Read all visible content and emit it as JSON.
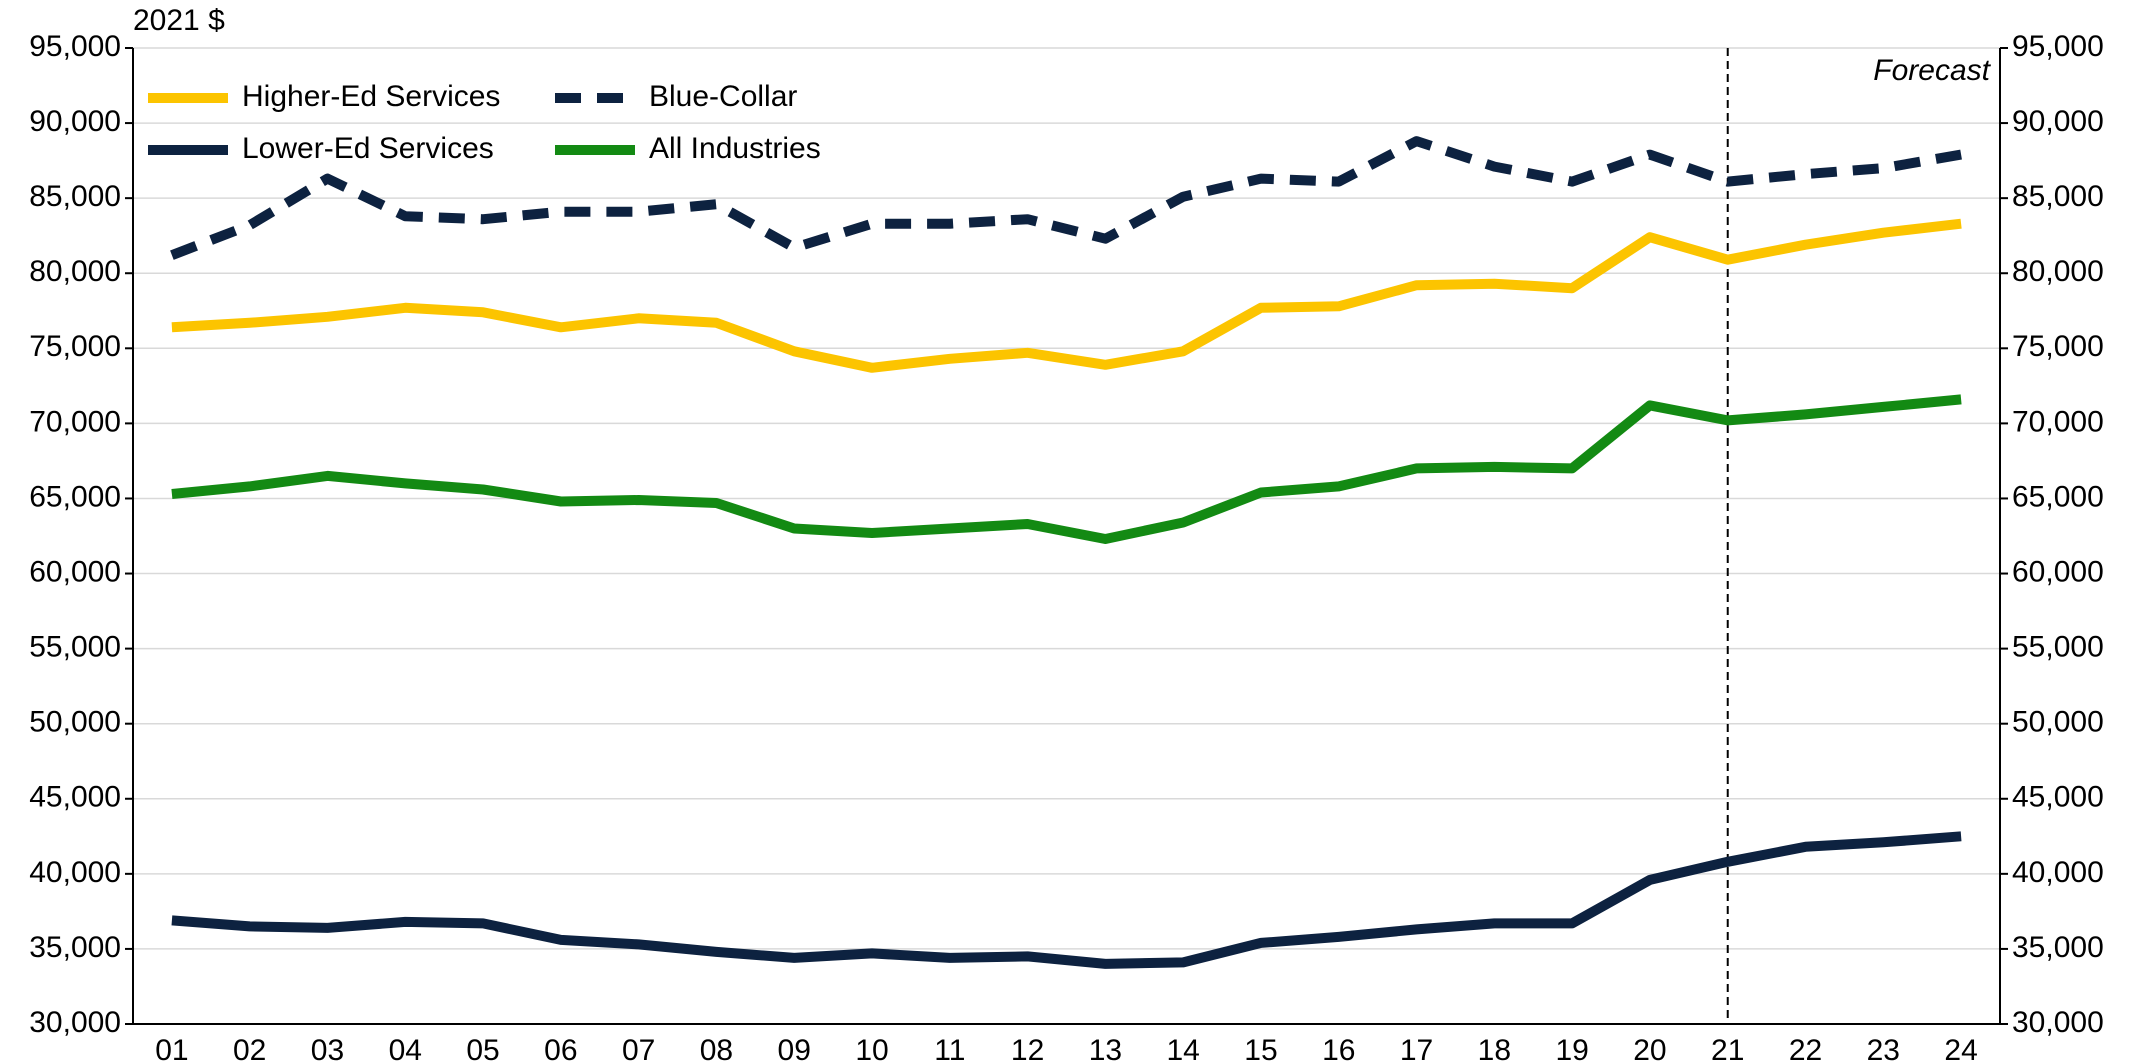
{
  "chart_data": {
    "type": "line",
    "unit_label": "2021 $",
    "categories": [
      "01",
      "02",
      "03",
      "04",
      "05",
      "06",
      "07",
      "08",
      "09",
      "10",
      "11",
      "12",
      "13",
      "14",
      "15",
      "16",
      "17",
      "18",
      "19",
      "20",
      "21",
      "22",
      "23",
      "24"
    ],
    "series": [
      {
        "name": "Higher-Ed Services",
        "color": "#fcc400",
        "style": "solid",
        "values": [
          76400,
          76700,
          77100,
          77700,
          77400,
          76400,
          77000,
          76700,
          74800,
          73700,
          74300,
          74700,
          73900,
          74800,
          77700,
          77800,
          79200,
          79300,
          79000,
          82400,
          80900,
          81900,
          82700,
          83300
        ]
      },
      {
        "name": "Blue-Collar",
        "color": "#0d2240",
        "style": "dashed",
        "values": [
          81200,
          83200,
          86300,
          83800,
          83600,
          84100,
          84100,
          84600,
          81700,
          83300,
          83300,
          83600,
          82300,
          85100,
          86300,
          86100,
          88800,
          87100,
          86100,
          87900,
          86100,
          86600,
          87000,
          87900
        ]
      },
      {
        "name": "Lower-Ed Services",
        "color": "#0d2240",
        "style": "solid",
        "values": [
          36900,
          36500,
          36400,
          36800,
          36700,
          35600,
          35300,
          34800,
          34400,
          34700,
          34400,
          34500,
          34000,
          34100,
          35400,
          35800,
          36300,
          36700,
          36700,
          39600,
          40800,
          41800,
          42100,
          42500
        ]
      },
      {
        "name": "All Industries",
        "color": "#138a13",
        "style": "solid",
        "values": [
          65300,
          65800,
          66500,
          66000,
          65600,
          64800,
          64900,
          64700,
          63000,
          62700,
          63000,
          63300,
          62300,
          63400,
          65400,
          65800,
          67000,
          67100,
          67000,
          71200,
          70200,
          70600,
          71100,
          71600
        ]
      }
    ],
    "ylim": [
      30000,
      95000
    ],
    "yticks": [
      {
        "value": 30000,
        "label": "30,000"
      },
      {
        "value": 35000,
        "label": "35,000"
      },
      {
        "value": 40000,
        "label": "40,000"
      },
      {
        "value": 45000,
        "label": "45,000"
      },
      {
        "value": 50000,
        "label": "50,000"
      },
      {
        "value": 55000,
        "label": "55,000"
      },
      {
        "value": 60000,
        "label": "60,000"
      },
      {
        "value": 65000,
        "label": "65,000"
      },
      {
        "value": 70000,
        "label": "70,000"
      },
      {
        "value": 75000,
        "label": "75,000"
      },
      {
        "value": 80000,
        "label": "80,000"
      },
      {
        "value": 85000,
        "label": "85,000"
      },
      {
        "value": 90000,
        "label": "90,000"
      },
      {
        "value": 95000,
        "label": "95,000"
      }
    ],
    "y2lim": [
      30000,
      95000
    ],
    "y2ticks": [
      {
        "value": 30000,
        "label": "30,000"
      },
      {
        "value": 35000,
        "label": "35,000"
      },
      {
        "value": 40000,
        "label": "40,000"
      },
      {
        "value": 45000,
        "label": "45,000"
      },
      {
        "value": 50000,
        "label": "50,000"
      },
      {
        "value": 55000,
        "label": "55,000"
      },
      {
        "value": 60000,
        "label": "60,000"
      },
      {
        "value": 65000,
        "label": "65,000"
      },
      {
        "value": 70000,
        "label": "70,000"
      },
      {
        "value": 75000,
        "label": "75,000"
      },
      {
        "value": 80000,
        "label": "80,000"
      },
      {
        "value": 85000,
        "label": "85,000"
      },
      {
        "value": 90000,
        "label": "90,000"
      },
      {
        "value": 95000,
        "label": "95,000"
      }
    ],
    "grid": true,
    "legend": "top-left",
    "forecast": {
      "label": "Forecast",
      "at": "21"
    }
  }
}
